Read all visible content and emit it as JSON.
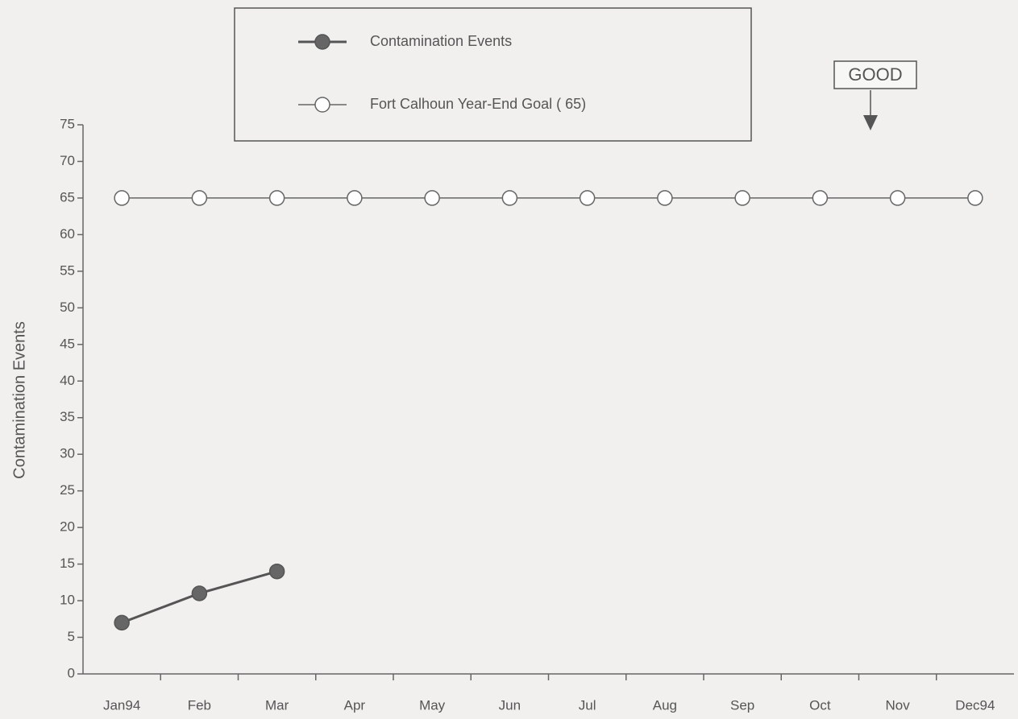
{
  "chart_data": {
    "type": "line",
    "y_label": "Contamination Events",
    "annotation": "GOOD",
    "categories": [
      "Jan94",
      "Feb",
      "Mar",
      "Apr",
      "May",
      "Jun",
      "Jul",
      "Aug",
      "Sep",
      "Oct",
      "Nov",
      "Dec94"
    ],
    "series": [
      {
        "name": "Contamination Events",
        "color": "#555555",
        "marker_fill": "#666666",
        "values": [
          7,
          11,
          14,
          null,
          null,
          null,
          null,
          null,
          null,
          null,
          null,
          null
        ]
      },
      {
        "name": "Fort Calhoun Year-End Goal ( 65)",
        "color": "#666666",
        "marker_fill": "#ffffff",
        "values": [
          65,
          65,
          65,
          65,
          65,
          65,
          65,
          65,
          65,
          65,
          65,
          65
        ]
      }
    ],
    "ylim": [
      0,
      75
    ],
    "yticks": [
      0,
      5,
      10,
      15,
      20,
      25,
      30,
      35,
      40,
      45,
      50,
      55,
      60,
      65,
      70,
      75
    ],
    "grid": false
  }
}
